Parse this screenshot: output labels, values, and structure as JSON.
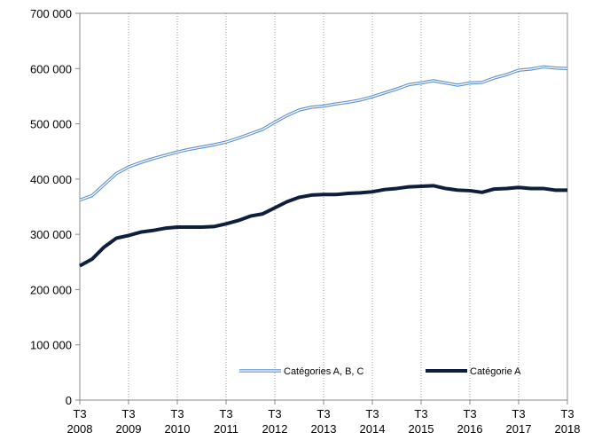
{
  "chart_data": {
    "type": "line",
    "categories": [
      [
        "T3",
        "2008"
      ],
      null,
      null,
      null,
      [
        "T3",
        "2009"
      ],
      null,
      null,
      null,
      [
        "T3",
        "2010"
      ],
      null,
      null,
      null,
      [
        "T3",
        "2011"
      ],
      null,
      null,
      null,
      [
        "T3",
        "2012"
      ],
      null,
      null,
      null,
      [
        "T3",
        "2013"
      ],
      null,
      null,
      null,
      [
        "T3",
        "2014"
      ],
      null,
      null,
      null,
      [
        "T3",
        "2015"
      ],
      null,
      null,
      null,
      [
        "T3",
        "2016"
      ],
      null,
      null,
      null,
      [
        "T3",
        "2017"
      ],
      null,
      null,
      null,
      [
        "T3",
        "2018"
      ]
    ],
    "series": [
      {
        "name": "Catégories A, B, C",
        "color": "#5b8fd0",
        "line_style": "double",
        "values": [
          362000,
          370000,
          390000,
          410000,
          422000,
          430000,
          437000,
          443000,
          449000,
          454000,
          458000,
          462000,
          467000,
          474000,
          482000,
          490000,
          503000,
          515000,
          525000,
          530000,
          532000,
          536000,
          539000,
          543000,
          549000,
          556000,
          563000,
          571000,
          574000,
          578000,
          574000,
          570000,
          574000,
          575000,
          583000,
          589000,
          597000,
          599000,
          603000,
          601000,
          600000
        ]
      },
      {
        "name": "Catégorie A",
        "color": "#0d1f3c",
        "line_style": "solid",
        "values": [
          243000,
          255000,
          277000,
          293000,
          298000,
          304000,
          307000,
          311000,
          313000,
          313000,
          313000,
          314000,
          319000,
          325000,
          333000,
          337000,
          348000,
          359000,
          367000,
          371000,
          372000,
          372000,
          374000,
          375000,
          377000,
          381000,
          383000,
          386000,
          387000,
          388000,
          383000,
          380000,
          379000,
          376000,
          382000,
          383000,
          385000,
          383000,
          383000,
          380000,
          380000
        ]
      }
    ],
    "ylim": [
      0,
      700000
    ],
    "yticks": [
      0,
      {
        "value": 100000,
        "label": "100 000"
      },
      {
        "value": 200000,
        "label": "200 000"
      },
      {
        "value": 300000,
        "label": "300 000"
      },
      {
        "value": 400000,
        "label": "400 000"
      },
      {
        "value": 500000,
        "label": "500 000"
      },
      {
        "value": 600000,
        "label": "600 000"
      },
      {
        "value": 700000,
        "label": "700 000"
      }
    ],
    "grid": "x-dotted",
    "legend": "bottom"
  }
}
